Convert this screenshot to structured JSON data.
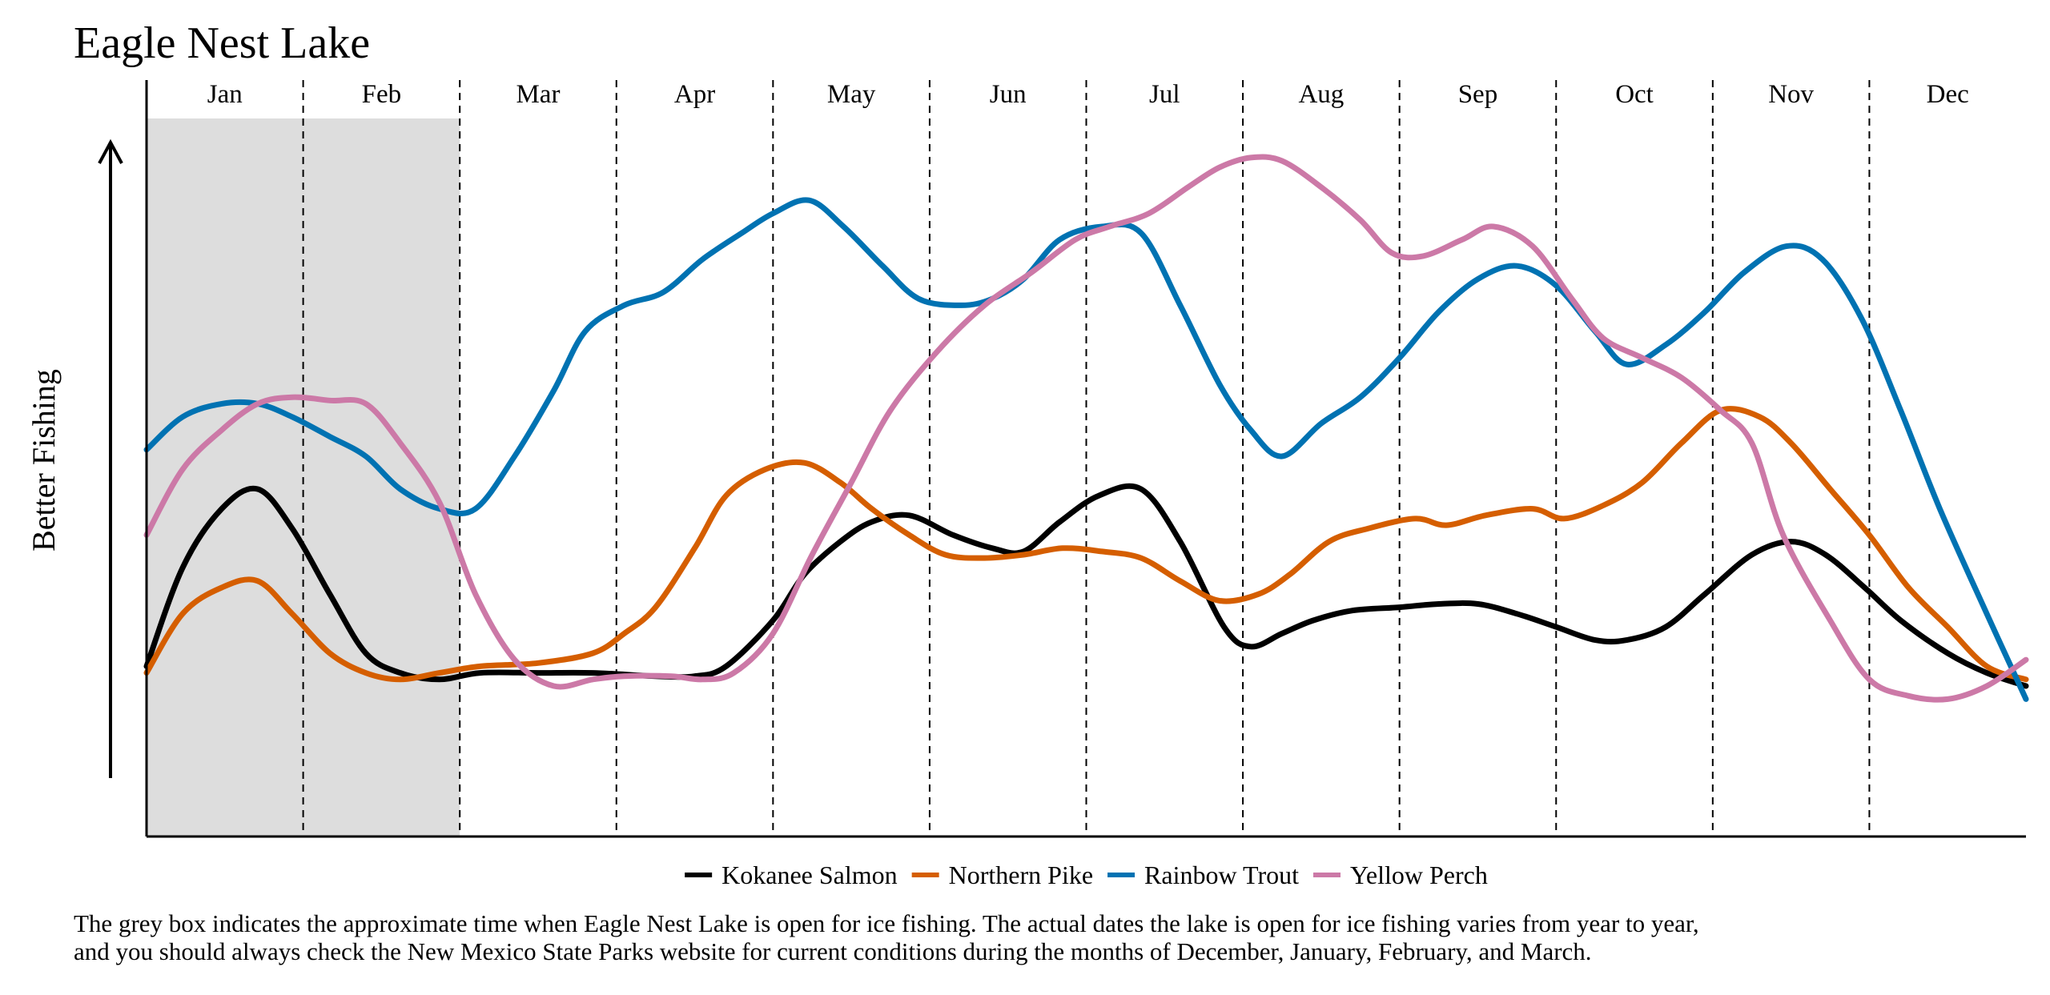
{
  "chart_data": {
    "type": "line",
    "title": "Eagle Nest Lake",
    "ylabel": "Better Fishing",
    "xlabel": "",
    "months": [
      "Jan",
      "Feb",
      "Mar",
      "Apr",
      "May",
      "Jun",
      "Jul",
      "Aug",
      "Sep",
      "Oct",
      "Nov",
      "Dec"
    ],
    "month_boundaries": [
      0,
      1,
      2,
      3,
      4,
      5,
      6,
      7,
      8,
      9,
      10,
      11,
      12
    ],
    "xlim": [
      0,
      12
    ],
    "ylim": [
      0,
      1
    ],
    "grid": "dashed vertical month dividers",
    "legend_position": "bottom-center",
    "ice_fishing_window": {
      "start": 0,
      "end": 2
    },
    "series": [
      {
        "name": "Kokanee Salmon",
        "color": "#000000",
        "points": [
          [
            0,
            0.18
          ],
          [
            0.23,
            0.33
          ],
          [
            0.48,
            0.42
          ],
          [
            0.71,
            0.45
          ],
          [
            0.93,
            0.39
          ],
          [
            1.17,
            0.29
          ],
          [
            1.4,
            0.2
          ],
          [
            1.62,
            0.17
          ],
          [
            1.87,
            0.16
          ],
          [
            2.13,
            0.17
          ],
          [
            2.5,
            0.17
          ],
          [
            2.85,
            0.17
          ],
          [
            3.25,
            0.165
          ],
          [
            3.5,
            0.165
          ],
          [
            3.7,
            0.18
          ],
          [
            4.0,
            0.25
          ],
          [
            4.2,
            0.32
          ],
          [
            4.43,
            0.37
          ],
          [
            4.63,
            0.4
          ],
          [
            4.87,
            0.41
          ],
          [
            5.15,
            0.38
          ],
          [
            5.4,
            0.36
          ],
          [
            5.6,
            0.355
          ],
          [
            5.83,
            0.4
          ],
          [
            6.08,
            0.44
          ],
          [
            6.35,
            0.45
          ],
          [
            6.6,
            0.37
          ],
          [
            6.88,
            0.24
          ],
          [
            7.05,
            0.21
          ],
          [
            7.25,
            0.23
          ],
          [
            7.45,
            0.25
          ],
          [
            7.7,
            0.265
          ],
          [
            8.0,
            0.27
          ],
          [
            8.25,
            0.275
          ],
          [
            8.5,
            0.275
          ],
          [
            8.75,
            0.26
          ],
          [
            9.0,
            0.24
          ],
          [
            9.25,
            0.22
          ],
          [
            9.45,
            0.22
          ],
          [
            9.7,
            0.24
          ],
          [
            9.95,
            0.29
          ],
          [
            10.25,
            0.35
          ],
          [
            10.5,
            0.37
          ],
          [
            10.72,
            0.35
          ],
          [
            10.97,
            0.3
          ],
          [
            11.2,
            0.25
          ],
          [
            11.5,
            0.2
          ],
          [
            11.75,
            0.17
          ],
          [
            12,
            0.15
          ]
        ]
      },
      {
        "name": "Northern Pike",
        "color": "#d55e00",
        "points": [
          [
            0,
            0.17
          ],
          [
            0.23,
            0.26
          ],
          [
            0.48,
            0.3
          ],
          [
            0.71,
            0.31
          ],
          [
            0.93,
            0.26
          ],
          [
            1.17,
            0.2
          ],
          [
            1.4,
            0.17
          ],
          [
            1.62,
            0.16
          ],
          [
            1.87,
            0.17
          ],
          [
            2.13,
            0.18
          ],
          [
            2.5,
            0.185
          ],
          [
            2.85,
            0.2
          ],
          [
            3.05,
            0.23
          ],
          [
            3.25,
            0.27
          ],
          [
            3.5,
            0.36
          ],
          [
            3.7,
            0.44
          ],
          [
            3.95,
            0.48
          ],
          [
            4.2,
            0.49
          ],
          [
            4.43,
            0.46
          ],
          [
            4.63,
            0.42
          ],
          [
            4.87,
            0.38
          ],
          [
            5.1,
            0.35
          ],
          [
            5.35,
            0.345
          ],
          [
            5.6,
            0.35
          ],
          [
            5.85,
            0.36
          ],
          [
            6.1,
            0.355
          ],
          [
            6.35,
            0.345
          ],
          [
            6.6,
            0.31
          ],
          [
            6.85,
            0.28
          ],
          [
            7.1,
            0.29
          ],
          [
            7.3,
            0.32
          ],
          [
            7.55,
            0.37
          ],
          [
            7.8,
            0.39
          ],
          [
            8.1,
            0.405
          ],
          [
            8.3,
            0.395
          ],
          [
            8.55,
            0.41
          ],
          [
            8.85,
            0.42
          ],
          [
            9.05,
            0.405
          ],
          [
            9.3,
            0.425
          ],
          [
            9.55,
            0.46
          ],
          [
            9.8,
            0.52
          ],
          [
            10.05,
            0.57
          ],
          [
            10.3,
            0.56
          ],
          [
            10.5,
            0.52
          ],
          [
            10.75,
            0.45
          ],
          [
            11.0,
            0.38
          ],
          [
            11.25,
            0.3
          ],
          [
            11.5,
            0.24
          ],
          [
            11.75,
            0.18
          ],
          [
            12,
            0.16
          ]
        ]
      },
      {
        "name": "Rainbow Trout",
        "color": "#0072b2",
        "points": [
          [
            0,
            0.51
          ],
          [
            0.23,
            0.56
          ],
          [
            0.48,
            0.58
          ],
          [
            0.71,
            0.58
          ],
          [
            0.93,
            0.56
          ],
          [
            1.17,
            0.53
          ],
          [
            1.4,
            0.5
          ],
          [
            1.62,
            0.45
          ],
          [
            1.87,
            0.42
          ],
          [
            2.1,
            0.42
          ],
          [
            2.35,
            0.5
          ],
          [
            2.6,
            0.6
          ],
          [
            2.8,
            0.69
          ],
          [
            3.05,
            0.73
          ],
          [
            3.3,
            0.75
          ],
          [
            3.55,
            0.8
          ],
          [
            3.8,
            0.84
          ],
          [
            4.0,
            0.87
          ],
          [
            4.23,
            0.89
          ],
          [
            4.45,
            0.85
          ],
          [
            4.7,
            0.79
          ],
          [
            4.93,
            0.74
          ],
          [
            5.2,
            0.73
          ],
          [
            5.4,
            0.74
          ],
          [
            5.6,
            0.77
          ],
          [
            5.83,
            0.83
          ],
          [
            6.1,
            0.85
          ],
          [
            6.35,
            0.84
          ],
          [
            6.6,
            0.73
          ],
          [
            6.85,
            0.61
          ],
          [
            7.05,
            0.54
          ],
          [
            7.25,
            0.5
          ],
          [
            7.5,
            0.55
          ],
          [
            7.75,
            0.59
          ],
          [
            8.0,
            0.65
          ],
          [
            8.25,
            0.72
          ],
          [
            8.5,
            0.77
          ],
          [
            8.75,
            0.79
          ],
          [
            9.0,
            0.76
          ],
          [
            9.25,
            0.69
          ],
          [
            9.45,
            0.64
          ],
          [
            9.7,
            0.67
          ],
          [
            9.95,
            0.72
          ],
          [
            10.2,
            0.78
          ],
          [
            10.47,
            0.82
          ],
          [
            10.7,
            0.8
          ],
          [
            10.95,
            0.71
          ],
          [
            11.2,
            0.57
          ],
          [
            11.45,
            0.42
          ],
          [
            11.75,
            0.26
          ],
          [
            12,
            0.13
          ]
        ]
      },
      {
        "name": "Yellow Perch",
        "color": "#cc79a7",
        "points": [
          [
            0,
            0.38
          ],
          [
            0.23,
            0.48
          ],
          [
            0.48,
            0.54
          ],
          [
            0.71,
            0.58
          ],
          [
            0.93,
            0.59
          ],
          [
            1.17,
            0.585
          ],
          [
            1.4,
            0.58
          ],
          [
            1.62,
            0.52
          ],
          [
            1.87,
            0.43
          ],
          [
            2.1,
            0.29
          ],
          [
            2.35,
            0.19
          ],
          [
            2.6,
            0.15
          ],
          [
            2.85,
            0.16
          ],
          [
            3.05,
            0.165
          ],
          [
            3.35,
            0.165
          ],
          [
            3.55,
            0.16
          ],
          [
            3.75,
            0.17
          ],
          [
            4.0,
            0.23
          ],
          [
            4.25,
            0.35
          ],
          [
            4.5,
            0.46
          ],
          [
            4.75,
            0.57
          ],
          [
            5.05,
            0.66
          ],
          [
            5.35,
            0.73
          ],
          [
            5.65,
            0.78
          ],
          [
            5.93,
            0.83
          ],
          [
            6.15,
            0.85
          ],
          [
            6.4,
            0.87
          ],
          [
            6.65,
            0.91
          ],
          [
            6.85,
            0.94
          ],
          [
            7.05,
            0.955
          ],
          [
            7.25,
            0.95
          ],
          [
            7.5,
            0.91
          ],
          [
            7.75,
            0.86
          ],
          [
            7.95,
            0.81
          ],
          [
            8.15,
            0.805
          ],
          [
            8.4,
            0.83
          ],
          [
            8.6,
            0.85
          ],
          [
            8.85,
            0.82
          ],
          [
            9.1,
            0.74
          ],
          [
            9.3,
            0.68
          ],
          [
            9.55,
            0.65
          ],
          [
            9.8,
            0.62
          ],
          [
            10.05,
            0.57
          ],
          [
            10.25,
            0.52
          ],
          [
            10.45,
            0.38
          ],
          [
            10.75,
            0.25
          ],
          [
            11.0,
            0.16
          ],
          [
            11.25,
            0.135
          ],
          [
            11.5,
            0.13
          ],
          [
            11.75,
            0.15
          ],
          [
            12,
            0.19
          ]
        ]
      }
    ],
    "caption_lines": [
      "The grey box indicates the approximate time when Eagle Nest Lake is open for ice fishing. The actual dates the lake is open for ice fishing varies from year to year,",
      "and you should always check the New Mexico State Parks website for current conditions during the months of December, January, February, and March."
    ]
  }
}
